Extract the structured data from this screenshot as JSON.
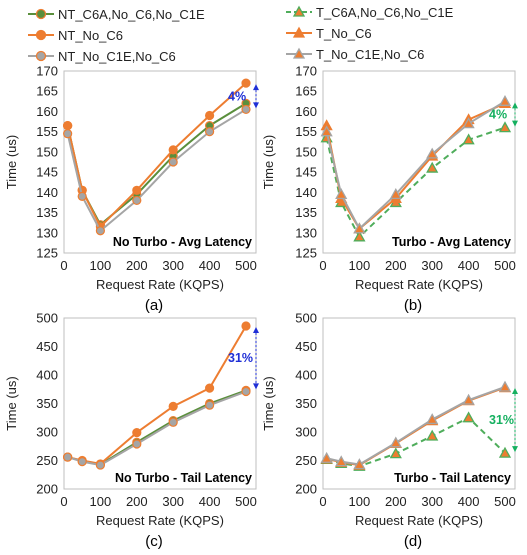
{
  "colors": {
    "nt_c6a": "#5a8f3c",
    "orange": "#ed7d31",
    "gray": "#a5a5a5",
    "t_c6a": "#4fad5b",
    "ann_blue": "#1f2fd6",
    "ann_green": "#16b060"
  },
  "legend": {
    "left": [
      {
        "label": "NT_C6A,No_C6,No_C1E",
        "color_key": "nt_c6a",
        "marker": "circle",
        "dash": false
      },
      {
        "label": "NT_No_C6",
        "color_key": "orange",
        "marker": "circle",
        "dash": false
      },
      {
        "label": "NT_No_C1E,No_C6",
        "color_key": "gray",
        "marker": "circle",
        "dash": false
      }
    ],
    "right": [
      {
        "label": "T_C6A,No_C6,No_C1E",
        "color_key": "t_c6a",
        "marker": "triangle",
        "dash": true
      },
      {
        "label": "T_No_C6",
        "color_key": "orange",
        "marker": "triangle",
        "dash": false
      },
      {
        "label": "T_No_C1E,No_C6",
        "color_key": "gray",
        "marker": "triangle",
        "dash": false
      }
    ]
  },
  "chart_data": [
    {
      "type": "line",
      "panel_label": "(a)",
      "title": "No Turbo - Avg Latency",
      "xlabel": "Request Rate (KQPS)",
      "ylabel": "Time (us)",
      "xlim": [
        0,
        500
      ],
      "ylim": [
        125,
        170
      ],
      "yticks": [
        125,
        130,
        135,
        140,
        145,
        150,
        155,
        160,
        165,
        170
      ],
      "xticks": [
        0,
        100,
        200,
        300,
        400,
        500
      ],
      "x": [
        10,
        50,
        100,
        200,
        300,
        400,
        500
      ],
      "marker": "circle",
      "series": [
        {
          "name": "NT_C6A,No_C6,No_C1E",
          "color_key": "nt_c6a",
          "dash": false,
          "values": [
            156.5,
            140.5,
            132,
            139.5,
            149,
            156.5,
            162
          ]
        },
        {
          "name": "NT_No_C6",
          "color_key": "orange",
          "dash": false,
          "values": [
            156.5,
            140.5,
            131.5,
            140.5,
            150.5,
            159,
            167
          ]
        },
        {
          "name": "NT_No_C1E,No_C6",
          "color_key": "gray",
          "dash": false,
          "values": [
            154.5,
            139,
            130.5,
            138,
            147.5,
            155,
            160.5
          ]
        }
      ],
      "annotation": {
        "text": "4%",
        "x": 500,
        "y_from": 167,
        "y_to": 160.5,
        "color_key": "ann_blue"
      }
    },
    {
      "type": "line",
      "panel_label": "(b)",
      "title": "Turbo - Avg Latency",
      "xlabel": "Request Rate (KQPS)",
      "ylabel": "Time (us)",
      "xlim": [
        0,
        500
      ],
      "ylim": [
        125,
        170
      ],
      "yticks": [
        125,
        130,
        135,
        140,
        145,
        150,
        155,
        160,
        165,
        170
      ],
      "xticks": [
        0,
        100,
        200,
        300,
        400,
        500
      ],
      "x": [
        10,
        50,
        100,
        200,
        300,
        400,
        500
      ],
      "marker": "triangle",
      "series": [
        {
          "name": "T_C6A,No_C6,No_C1E",
          "color_key": "t_c6a",
          "dash": true,
          "values": [
            153.5,
            137.5,
            129,
            137.5,
            146,
            153,
            156
          ]
        },
        {
          "name": "T_No_C6",
          "color_key": "orange",
          "dash": false,
          "values": [
            156.5,
            138.5,
            131,
            138.5,
            149,
            158,
            162
          ]
        },
        {
          "name": "T_No_C1E,No_C6",
          "color_key": "gray",
          "dash": false,
          "values": [
            155,
            139.5,
            131,
            139.5,
            149.5,
            157,
            162.5
          ]
        }
      ],
      "annotation": {
        "text": "4%",
        "x": 500,
        "y_from": 162.5,
        "y_to": 156,
        "color_key": "ann_green"
      }
    },
    {
      "type": "line",
      "panel_label": "(c)",
      "title": "No Turbo - Tail Latency",
      "xlabel": "Request Rate (KQPS)",
      "ylabel": "Time (us)",
      "xlim": [
        0,
        500
      ],
      "ylim": [
        200,
        500
      ],
      "yticks": [
        200,
        250,
        300,
        350,
        400,
        450,
        500
      ],
      "xticks": [
        0,
        100,
        200,
        300,
        400,
        500
      ],
      "x": [
        10,
        50,
        100,
        200,
        300,
        400,
        500
      ],
      "marker": "circle",
      "series": [
        {
          "name": "NT_C6A,No_C6,No_C1E",
          "color_key": "nt_c6a",
          "dash": false,
          "values": [
            256,
            249,
            243,
            282,
            320,
            350,
            373
          ]
        },
        {
          "name": "NT_No_C6",
          "color_key": "orange",
          "dash": false,
          "values": [
            256,
            250,
            244,
            299,
            345,
            377,
            486
          ]
        },
        {
          "name": "NT_No_C1E,No_C6",
          "color_key": "gray",
          "dash": false,
          "values": [
            256,
            248,
            242,
            279,
            317,
            347,
            371
          ]
        }
      ],
      "annotation": {
        "text": "31%",
        "x": 500,
        "y_from": 486,
        "y_to": 373,
        "color_key": "ann_blue"
      }
    },
    {
      "type": "line",
      "panel_label": "(d)",
      "title": "Turbo - Tail Latency",
      "xlabel": "Request Rate (KQPS)",
      "ylabel": "Time (us)",
      "xlim": [
        0,
        500
      ],
      "ylim": [
        200,
        500
      ],
      "yticks": [
        200,
        250,
        300,
        350,
        400,
        450,
        500
      ],
      "xticks": [
        0,
        100,
        200,
        300,
        400,
        500
      ],
      "x": [
        10,
        50,
        100,
        200,
        300,
        400,
        500
      ],
      "marker": "triangle",
      "series": [
        {
          "name": "T_C6A,No_C6,No_C1E",
          "color_key": "t_c6a",
          "dash": true,
          "values": [
            252,
            245,
            240,
            262,
            293,
            325,
            263
          ]
        },
        {
          "name": "T_No_C6",
          "color_key": "orange",
          "dash": false,
          "values": [
            253,
            247,
            242,
            280,
            320,
            355,
            378
          ]
        },
        {
          "name": "T_No_C1E,No_C6",
          "color_key": "gray",
          "dash": false,
          "values": [
            254,
            248,
            243,
            281,
            322,
            356,
            379
          ]
        }
      ],
      "annotation": {
        "text": "31%",
        "x": 500,
        "y_from": 379,
        "y_to": 263,
        "color_key": "ann_green"
      }
    }
  ]
}
